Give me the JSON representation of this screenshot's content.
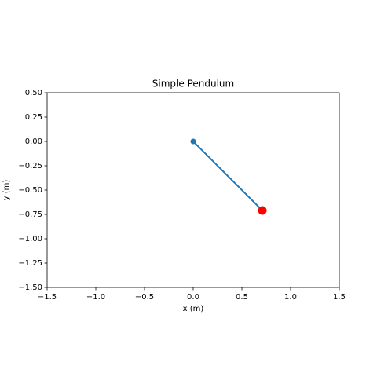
{
  "chart_data": {
    "type": "line",
    "title": "Simple Pendulum",
    "x_label": "x (m)",
    "y_label": "y (m)",
    "x": [
      0,
      0.71
    ],
    "series": [
      {
        "color": "#1f77b4",
        "values": [
          0,
          -0.71
        ]
      }
    ],
    "pivot": {
      "x": 0,
      "y": 0,
      "color": "#1f77b4"
    },
    "bob": {
      "x": 0.71,
      "y": -0.71,
      "color": "#ff0000"
    },
    "xlim": [
      -1.5,
      1.5
    ],
    "xticks": [
      {
        "value": -1.5,
        "label": "−1.5"
      },
      {
        "value": -1.0,
        "label": "−1.0"
      },
      {
        "value": -0.5,
        "label": "−0.5"
      },
      {
        "value": 0,
        "label": "0.0"
      },
      0.5,
      {
        "value": 1.0,
        "label": "1.0"
      },
      1.5
    ],
    "ylim": [
      -1.5,
      0.5
    ],
    "yticks": [
      {
        "value": 0.5,
        "label": "0.50"
      },
      0.25,
      {
        "value": 0,
        "label": "0.00"
      },
      {
        "value": -0.25,
        "label": "−0.25"
      },
      {
        "value": -0.5,
        "label": "−0.50"
      },
      {
        "value": -0.75,
        "label": "−0.75"
      },
      {
        "value": -1.0,
        "label": "−1.00"
      },
      {
        "value": -1.25,
        "label": "−1.25"
      },
      {
        "value": -1.5,
        "label": "−1.50"
      }
    ]
  }
}
